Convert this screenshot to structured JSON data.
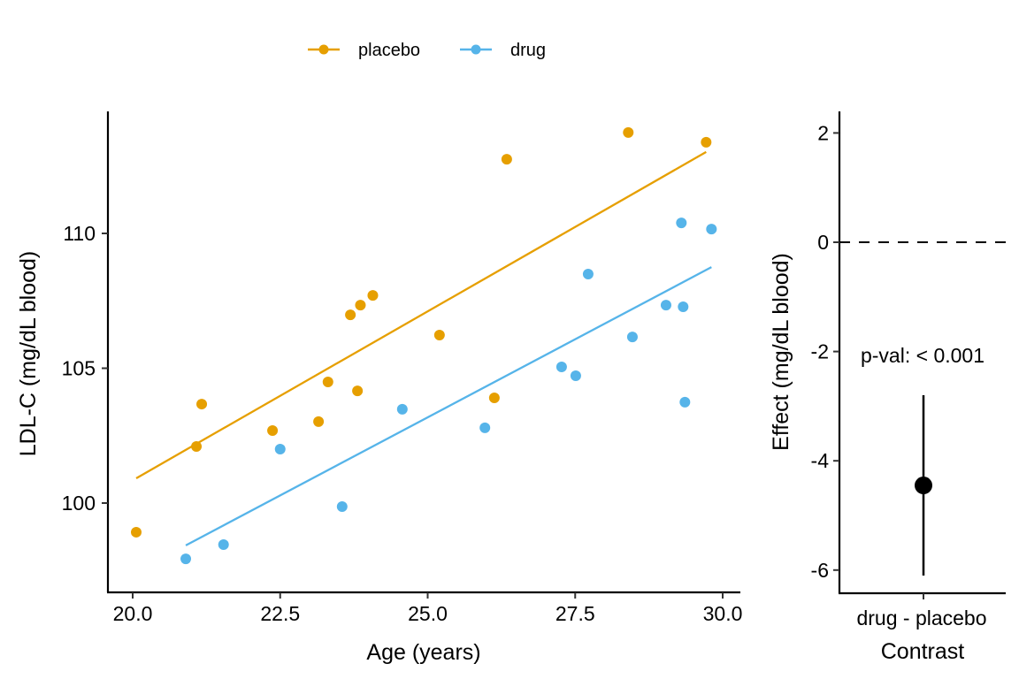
{
  "chart_data": [
    {
      "type": "scatter",
      "panel": "main",
      "xlabel": "Age (years)",
      "ylabel": "LDL-C (mg/dL blood)",
      "xlim": [
        19.55,
        30.3
      ],
      "ylim": [
        96.7,
        114.6
      ],
      "x_ticks": [
        20.0,
        22.5,
        25.0,
        27.5,
        30.0
      ],
      "x_tick_labels": [
        "20.0",
        "22.5",
        "25.0",
        "27.5",
        "30.0"
      ],
      "y_ticks": [
        100,
        105,
        110
      ],
      "y_tick_labels": [
        "100",
        "105",
        "110"
      ],
      "grid": false,
      "legend": {
        "placement": "top",
        "entries": [
          {
            "name": "placebo",
            "color": "#E69F00"
          },
          {
            "name": "drug",
            "color": "#56B4E9"
          }
        ]
      },
      "series": [
        {
          "name": "placebo",
          "color": "#E69F00",
          "points": [
            [
              20.06,
              98.92
            ],
            [
              21.08,
              102.1
            ],
            [
              21.17,
              103.67
            ],
            [
              22.37,
              102.69
            ],
            [
              23.15,
              103.02
            ],
            [
              23.31,
              104.49
            ],
            [
              23.69,
              106.98
            ],
            [
              23.81,
              104.16
            ],
            [
              23.86,
              107.34
            ],
            [
              24.07,
              107.7
            ],
            [
              25.2,
              106.23
            ],
            [
              26.13,
              103.9
            ],
            [
              26.34,
              112.75
            ],
            [
              28.4,
              113.74
            ],
            [
              29.72,
              113.38
            ]
          ],
          "fit_line": [
            [
              20.06,
              100.92
            ],
            [
              29.72,
              113.02
            ]
          ]
        },
        {
          "name": "drug",
          "color": "#56B4E9",
          "points": [
            [
              20.9,
              97.93
            ],
            [
              21.54,
              98.46
            ],
            [
              22.5,
              102.0
            ],
            [
              23.55,
              99.87
            ],
            [
              24.57,
              103.48
            ],
            [
              25.97,
              102.79
            ],
            [
              27.27,
              105.05
            ],
            [
              27.51,
              104.72
            ],
            [
              27.72,
              108.49
            ],
            [
              28.47,
              106.16
            ],
            [
              29.04,
              107.34
            ],
            [
              29.3,
              110.39
            ],
            [
              29.33,
              107.28
            ],
            [
              29.36,
              103.74
            ],
            [
              29.81,
              110.16
            ]
          ],
          "fit_line": [
            [
              20.9,
              98.43
            ],
            [
              29.81,
              108.75
            ]
          ]
        }
      ]
    },
    {
      "type": "scatter",
      "panel": "contrast",
      "xlabel_lines": [
        "drug - placebo",
        "Contrast"
      ],
      "ylabel": "Effect (mg/dL blood)",
      "ylim": [
        -6.4,
        2.4
      ],
      "y_ticks": [
        2,
        0,
        -2,
        -4,
        -6
      ],
      "y_tick_labels": [
        "2",
        "0",
        "-2",
        "-4",
        "-6"
      ],
      "categories": [
        "drug - placebo"
      ],
      "estimate": -4.45,
      "ci": [
        -6.1,
        -2.8
      ],
      "reference_line": 0,
      "annotation": "p-val: < 0.001",
      "color": "#000000"
    }
  ]
}
